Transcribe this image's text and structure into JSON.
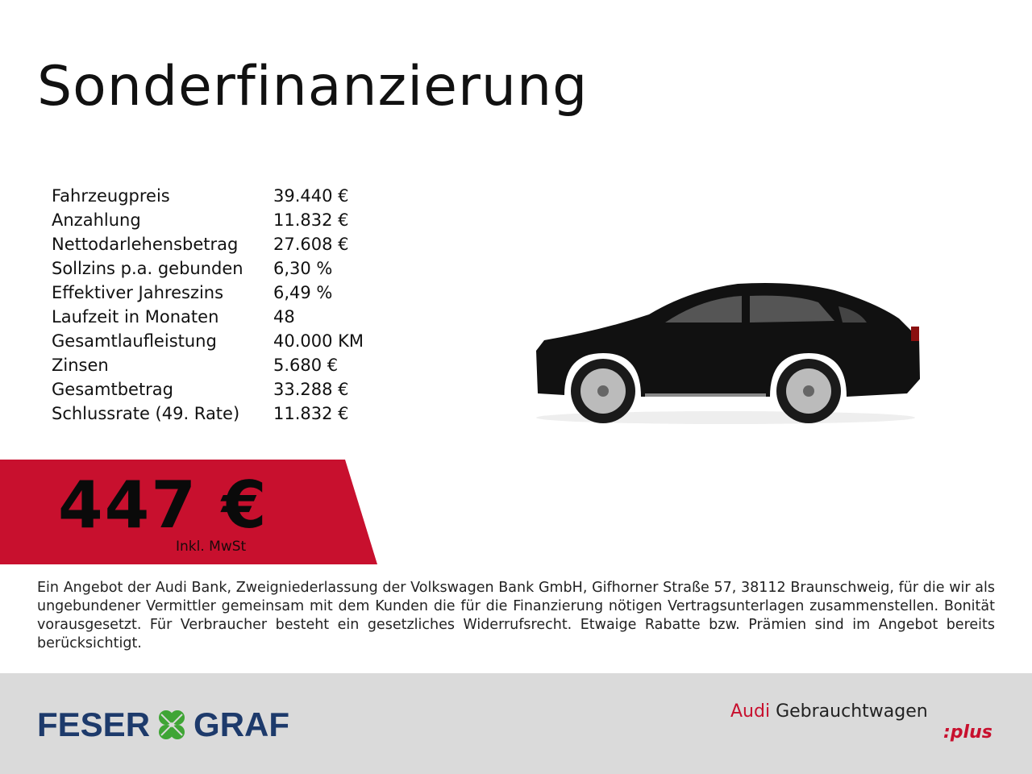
{
  "title": "Sonderfinanzierung",
  "specs": [
    {
      "label": "Fahrzeugpreis",
      "value": "39.440 €"
    },
    {
      "label": "Anzahlung",
      "value": "11.832 €"
    },
    {
      "label": "Nettodarlehensbetrag",
      "value": "27.608 €"
    },
    {
      "label": "Sollzins p.a. gebunden",
      "value": "6,30 %"
    },
    {
      "label": "Effektiver Jahreszins",
      "value": "6,49 %"
    },
    {
      "label": "Laufzeit in Monaten",
      "value": "48"
    },
    {
      "label": "Gesamtlaufleistung",
      "value": "40.000 KM"
    },
    {
      "label": "Zinsen",
      "value": "5.680 €"
    },
    {
      "label": "Gesamtbetrag",
      "value": "33.288 €"
    },
    {
      "label": "Schlussrate (49. Rate)",
      "value": "11.832 €"
    }
  ],
  "price": {
    "amount": "447 €",
    "note": "Inkl. MwSt",
    "banner_color": "#c8102e"
  },
  "disclaimer": "Ein Angebot der Audi Bank, Zweigniederlassung der Volkswagen Bank GmbH, Gifhorner Straße 57, 38112 Braunschweig, für die wir als ungebundener Vermittler gemeinsam mit dem Kunden die für die Finanzierung nötigen Vertragsunterlagen zusammenstellen. Bonität vorausgesetzt. Für Verbraucher besteht ein gesetzliches Widerrufsrecht. Etwaige Rabatte bzw. Prämien sind im Angebot bereits berücksichtigt.",
  "footer": {
    "dealer_left": "FESER",
    "dealer_right": "GRAF",
    "brand": "Audi",
    "program": "Gebrauchtwagen",
    "program_suffix": ":plus"
  }
}
